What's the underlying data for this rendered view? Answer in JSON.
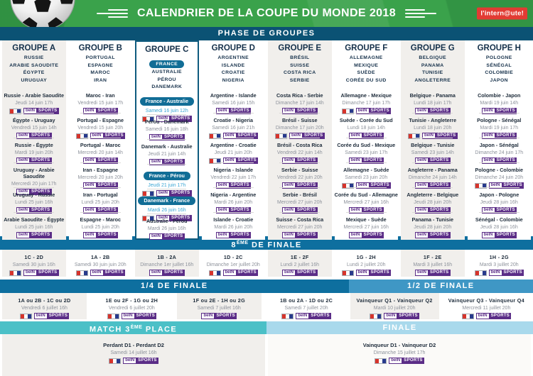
{
  "header": {
    "title": "CALENDRIER DE LA COUPE DU MONDE 2018",
    "logo": "l'intern@ute!"
  },
  "icons": {
    "soccer_ball": "soccer-ball",
    "deco_lines": "triple-speed-lines"
  },
  "colors": {
    "header_green": "#3aa24b",
    "phase_bar": "#0b5274",
    "knockout_bar": "#0e6f9f",
    "semi_bar": "#3f97c5",
    "third_place_bar": "#4bc0c7",
    "final_bar": "#a9d9ec",
    "highlight_blue": "#116d96",
    "highlight_date": "#3aa6d4",
    "shaded_column": "#f1efec",
    "bein_purple": "#5b2d87",
    "tf1_red": "#d6342c",
    "tf1_blue": "#283a8c",
    "logo_red": "#e23b33"
  },
  "channels": {
    "tf1": "TF1",
    "bein_left": "beIN",
    "bein_right": "SPORTS"
  },
  "sections": {
    "groups_bar": "PHASE DE GROUPES",
    "r16": {
      "pre": "8",
      "sup": "ÈME",
      "post": " DE FINALE"
    },
    "qf": "1/4 DE FINALE",
    "sf": "1/2 DE FINALE",
    "third": {
      "pre": "MATCH 3",
      "sup": "ÈME",
      "post": " PLACE"
    },
    "final": "FINALE"
  },
  "groups": [
    {
      "name": "GROUPE A",
      "shaded": true,
      "teams": [
        "RUSSIE",
        "ARABIE SAOUDITE",
        "ÉGYPTE",
        "URUGUAY"
      ],
      "matches": [
        {
          "teams": "Russie - Arabie Saoudite",
          "date": "Jeudi 14 juin 17h",
          "channels": [
            "TF1",
            "beIN SPORTS"
          ]
        },
        {
          "teams": "Égypte - Uruguay",
          "date": "Vendredi 15 juin 14h",
          "channels": [
            "beIN SPORTS"
          ]
        },
        {
          "teams": "Russie - Égypte",
          "date": "Mardi 19 juin 20h",
          "channels": [
            "beIN SPORTS"
          ]
        },
        {
          "teams": "Uruguay - Arabie Saoudite",
          "date": "Mercredi 20 juin 17h",
          "channels": [
            "beIN SPORTS"
          ]
        },
        {
          "teams": "Uruguay - Russie",
          "date": "Lundi 25 juin 16h",
          "channels": [
            "beIN SPORTS"
          ]
        },
        {
          "teams": "Arabie Saoudite - Égypte",
          "date": "Lundi 25 juin 16h",
          "channels": [
            "beIN SPORTS"
          ]
        }
      ]
    },
    {
      "name": "GROUPE B",
      "shaded": false,
      "teams": [
        "PORTUGAL",
        "ESPAGNE",
        "MAROC",
        "IRAN"
      ],
      "matches": [
        {
          "teams": "Maroc - Iran",
          "date": "Vendredi 15 juin 17h",
          "channels": [
            "beIN SPORTS"
          ]
        },
        {
          "teams": "Portugal - Espagne",
          "date": "Vendredi 15 juin 20h",
          "channels": [
            "TF1",
            "beIN SPORTS"
          ]
        },
        {
          "teams": "Portugal - Maroc",
          "date": "Mercredi 20 juin 14h",
          "channels": [
            "beIN SPORTS"
          ]
        },
        {
          "teams": "Iran - Espagne",
          "date": "Mercredi 20 juin 20h",
          "channels": [
            "beIN SPORTS"
          ]
        },
        {
          "teams": "Iran - Portugal",
          "date": "Lundi 25 juin 20h",
          "channels": [
            "beIN SPORTS"
          ]
        },
        {
          "teams": "Espagne - Maroc",
          "date": "Lundi 25 juin 20h",
          "channels": [
            "beIN SPORTS"
          ]
        }
      ]
    },
    {
      "name": "GROUPE C",
      "shaded": false,
      "highlight": true,
      "pill_team": "FRANCE",
      "teams": [
        "FRANCE",
        "AUSTRALIE",
        "PÉROU",
        "DANEMARK"
      ],
      "matches": [
        {
          "teams": "France - Australie",
          "date": "Samedi 16 juin 12h",
          "channels": [
            "TF1",
            "beIN SPORTS"
          ],
          "highlight": true
        },
        {
          "teams": "Pérou - Danemark",
          "date": "Samedi 16 juin 18h",
          "channels": [
            "beIN SPORTS"
          ]
        },
        {
          "teams": "Danemark - Australie",
          "date": "Jeudi 21 juin 14h",
          "channels": [
            "beIN SPORTS"
          ]
        },
        {
          "teams": "France - Pérou",
          "date": "Jeudi 21 juin 17h",
          "channels": [
            "TF1",
            "beIN SPORTS"
          ],
          "highlight": true
        },
        {
          "teams": "Danemark - France",
          "date": "Mardi 26 juin 16h",
          "channels": [
            "TF1",
            "beIN SPORTS"
          ],
          "highlight": true
        },
        {
          "teams": "Australie - Pérou",
          "date": "Mardi 26 juin 16h",
          "channels": [
            "beIN SPORTS"
          ]
        }
      ]
    },
    {
      "name": "GROUPE D",
      "shaded": false,
      "teams": [
        "ARGENTINE",
        "ISLANDE",
        "CROATIE",
        "NIGERIA"
      ],
      "matches": [
        {
          "teams": "Argentine - Islande",
          "date": "Samedi 16 juin 15h",
          "channels": [
            "beIN SPORTS"
          ]
        },
        {
          "teams": "Croatie - Nigeria",
          "date": "Samedi 16 juin 21h",
          "channels": [
            "TF1",
            "beIN SPORTS"
          ]
        },
        {
          "teams": "Argentine - Croatie",
          "date": "Jeudi 21 juin 20h",
          "channels": [
            "TF1",
            "beIN SPORTS"
          ]
        },
        {
          "teams": "Nigeria - Islande",
          "date": "Vendredi 22 juin 17h",
          "channels": [
            "beIN SPORTS"
          ]
        },
        {
          "teams": "Nigeria - Argentine",
          "date": "Mardi 26 juin 20h",
          "channels": [
            "beIN SPORTS"
          ]
        },
        {
          "teams": "Islande - Croatie",
          "date": "Mardi 26 juin 20h",
          "channels": [
            "beIN SPORTS"
          ]
        }
      ]
    },
    {
      "name": "GROUPE E",
      "shaded": true,
      "teams": [
        "BRÉSIL",
        "SUISSE",
        "COSTA RICA",
        "SERBIE"
      ],
      "matches": [
        {
          "teams": "Costa Rica - Serbie",
          "date": "Dimanche 17 juin 14h",
          "channels": [
            "beIN SPORTS"
          ]
        },
        {
          "teams": "Brésil - Suisse",
          "date": "Dimanche 17 juin 20h",
          "channels": [
            "TF1",
            "beIN SPORTS"
          ]
        },
        {
          "teams": "Brésil - Costa Rica",
          "date": "Vendredi 22 juin 14h",
          "channels": [
            "beIN SPORTS"
          ]
        },
        {
          "teams": "Serbie - Suisse",
          "date": "Vendredi 22 juin 20h",
          "channels": [
            "beIN SPORTS"
          ]
        },
        {
          "teams": "Serbie - Brésil",
          "date": "Mercredi 27 juin 20h",
          "channels": [
            "beIN SPORTS"
          ]
        },
        {
          "teams": "Suisse - Costa Rica",
          "date": "Mercredi 27 juin 20h",
          "channels": [
            "beIN SPORTS"
          ]
        }
      ]
    },
    {
      "name": "GROUPE F",
      "shaded": false,
      "teams": [
        "ALLEMAGNE",
        "MEXIQUE",
        "SUÈDE",
        "CORÉE DU SUD"
      ],
      "matches": [
        {
          "teams": "Allemagne - Mexique",
          "date": "Dimanche 17 juin 17h",
          "channels": [
            "TF1",
            "beIN SPORTS"
          ]
        },
        {
          "teams": "Suède - Corée du Sud",
          "date": "Lundi 18 juin 14h",
          "channels": [
            "beIN SPORTS"
          ]
        },
        {
          "teams": "Corée du Sud - Mexique",
          "date": "Samedi 23 juin 17h",
          "channels": [
            "beIN SPORTS"
          ]
        },
        {
          "teams": "Allemagne - Suède",
          "date": "Samedi 23 juin 20h",
          "channels": [
            "TF1",
            "beIN SPORTS"
          ]
        },
        {
          "teams": "Corée du Sud - Allemagne",
          "date": "Mercredi 27 juin 16h",
          "channels": [
            "beIN SPORTS"
          ]
        },
        {
          "teams": "Mexique - Suède",
          "date": "Mercredi 27 juin 16h",
          "channels": [
            "beIN SPORTS"
          ]
        }
      ]
    },
    {
      "name": "GROUPE G",
      "shaded": true,
      "teams": [
        "BELGIQUE",
        "PANAMA",
        "TUNISIE",
        "ANGLETERRE"
      ],
      "matches": [
        {
          "teams": "Belgique - Panama",
          "date": "Lundi 18 juin 17h",
          "channels": [
            "beIN SPORTS"
          ]
        },
        {
          "teams": "Tunisie - Angleterre",
          "date": "Lundi 18 juin 20h",
          "channels": [
            "TF1",
            "beIN SPORTS"
          ]
        },
        {
          "teams": "Belgique - Tunisie",
          "date": "Samedi 23 juin 14h",
          "channels": [
            "beIN SPORTS"
          ]
        },
        {
          "teams": "Angleterre - Panama",
          "date": "Dimanche 24 juin 14h",
          "channels": [
            "beIN SPORTS"
          ]
        },
        {
          "teams": "Angleterre - Belgique",
          "date": "Jeudi 28 juin 20h",
          "channels": [
            "beIN SPORTS"
          ]
        },
        {
          "teams": "Panama - Tunisie",
          "date": "Jeudi 28 juin 20h",
          "channels": [
            "beIN SPORTS"
          ]
        }
      ]
    },
    {
      "name": "GROUPE H",
      "shaded": false,
      "teams": [
        "POLOGNE",
        "SÉNÉGAL",
        "COLOMBIE",
        "JAPON"
      ],
      "matches": [
        {
          "teams": "Colombie - Japon",
          "date": "Mardi 19 juin 14h",
          "channels": [
            "beIN SPORTS"
          ]
        },
        {
          "teams": "Pologne - Sénégal",
          "date": "Mardi 19 juin 17h",
          "channels": [
            "beIN SPORTS"
          ]
        },
        {
          "teams": "Japon - Sénégal",
          "date": "Dimanche 24 juin 17h",
          "channels": [
            "beIN SPORTS"
          ]
        },
        {
          "teams": "Pologne - Colombie",
          "date": "Dimanche 24 juin 20h",
          "channels": [
            "TF1",
            "beIN SPORTS"
          ]
        },
        {
          "teams": "Japon - Pologne",
          "date": "Jeudi 28 juin 16h",
          "channels": [
            "beIN SPORTS"
          ]
        },
        {
          "teams": "Sénégal - Colombie",
          "date": "Jeudi 28 juin 16h",
          "channels": [
            "beIN SPORTS"
          ]
        }
      ]
    }
  ],
  "round_of_16": [
    {
      "teams": "1C - 2D",
      "date": "Samedi 30 juin 16h",
      "channels": [
        "TF1",
        "beIN SPORTS"
      ]
    },
    {
      "teams": "1A - 2B",
      "date": "Samedi 30 juin juin 20h",
      "channels": [
        "TF1",
        "beIN SPORTS"
      ]
    },
    {
      "teams": "1B - 2A",
      "date": "Dimanche 1er juillet 16h",
      "channels": [
        "beIN SPORTS"
      ]
    },
    {
      "teams": "1D - 2C",
      "date": "Dimanche 1er juillet 20h",
      "channels": [
        "TF1",
        "beIN SPORTS"
      ]
    },
    {
      "teams": "1E - 2F",
      "date": "Lundi 2 juillet 16h",
      "channels": [
        "beIN SPORTS"
      ]
    },
    {
      "teams": "1G - 2H",
      "date": "Lundi 2 juillet 20h",
      "channels": [
        "TF1",
        "beIN SPORTS"
      ]
    },
    {
      "teams": "1F - 2E",
      "date": "Mardi 3 juillet 16h",
      "channels": [
        "beIN SPORTS"
      ]
    },
    {
      "teams": "1H - 2G",
      "date": "Mardi 3 juillet 20h",
      "channels": [
        "TF1",
        "beIN SPORTS"
      ]
    }
  ],
  "quarter_finals": [
    {
      "teams": "1A ou 2B - 1C ou 2D",
      "date": "Vendredi 6 juillet 16h",
      "channels": [
        "TF1",
        "beIN SPORTS"
      ]
    },
    {
      "teams": "1E ou 2F - 1G ou 2H",
      "date": "Vendredi 6 juillet 20h",
      "channels": [
        "TF1",
        "beIN SPORTS"
      ]
    },
    {
      "teams": "1F ou 2E - 1H ou 2G",
      "date": "Samedi 7 juillet 16h",
      "channels": [
        "beIN SPORTS"
      ]
    },
    {
      "teams": "1B ou 2A - 1D ou 2C",
      "date": "Samedi 7 juillet 20h",
      "channels": [
        "TF1",
        "beIN SPORTS"
      ]
    }
  ],
  "semi_finals": [
    {
      "teams": "Vainqueur Q1 - Vainqueur Q2",
      "date": "Mardi 10 juillet 20h",
      "channels": [
        "TF1",
        "beIN SPORTS"
      ]
    },
    {
      "teams": "Vainqueur Q3 - Vainqueur Q4",
      "date": "Mercredi 11 juillet 20h",
      "channels": [
        "TF1",
        "beIN SPORTS"
      ]
    }
  ],
  "third_place": {
    "teams": "Perdant D1 - Perdant D2",
    "date": "Samedi 14 juillet 16h",
    "channels": [
      "TF1",
      "beIN SPORTS"
    ]
  },
  "final_match": {
    "teams": "Vainqueur D1 - Vainqueur D2",
    "date": "Dimanche 15 juillet 17h",
    "channels": [
      "TF1",
      "beIN SPORTS"
    ]
  }
}
